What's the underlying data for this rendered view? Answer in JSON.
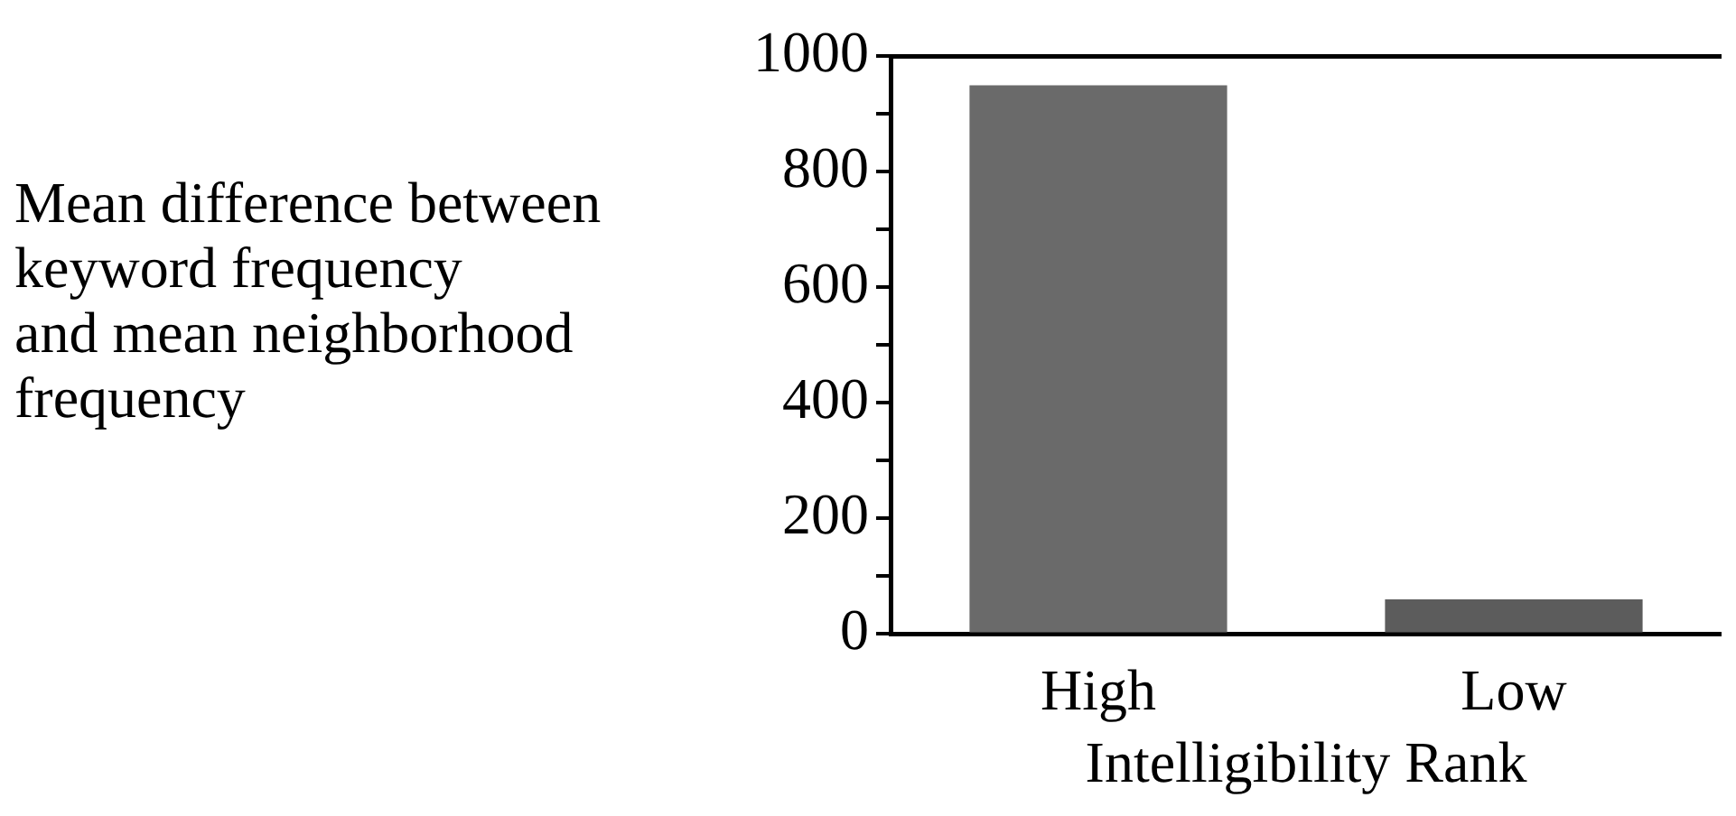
{
  "chart_data": {
    "type": "bar",
    "ylabel": "Mean difference between\nkeyword frequency\nand mean neighborhood\nfrequency",
    "xlabel": "Intelligibility Rank",
    "categories": [
      "High",
      "Low"
    ],
    "values": [
      950,
      60
    ],
    "colors": [
      "#6a6a6a",
      "#5c5c5c"
    ],
    "ylim": [
      0,
      1000
    ],
    "yticks": [
      0,
      {
        "value": 100,
        "label": null
      },
      200,
      {
        "value": 300,
        "label": null
      },
      400,
      {
        "value": 500,
        "label": null
      },
      600,
      {
        "value": 700,
        "label": null
      },
      800,
      {
        "value": 900,
        "label": null
      },
      1000
    ],
    "grid": false,
    "legend": false
  }
}
